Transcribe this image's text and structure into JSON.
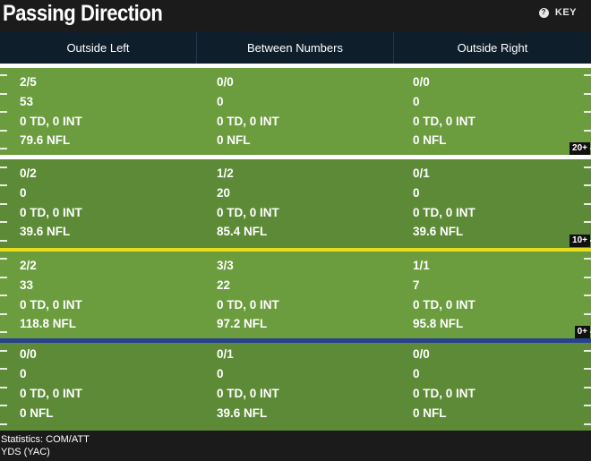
{
  "header": {
    "title": "Passing Direction",
    "key_label": "KEY",
    "key_icon": "question-icon"
  },
  "columns": [
    "Outside Left",
    "Between Numbers",
    "Outside Right"
  ],
  "zones": [
    {
      "label": "20+",
      "cells": [
        {
          "com_att": "2/5",
          "yds": "53",
          "td_int": "0 TD, 0 INT",
          "nfl": "79.6 NFL"
        },
        {
          "com_att": "0/0",
          "yds": "0",
          "td_int": "0 TD, 0 INT",
          "nfl": "0 NFL"
        },
        {
          "com_att": "0/0",
          "yds": "0",
          "td_int": "0 TD, 0 INT",
          "nfl": "0 NFL"
        }
      ]
    },
    {
      "label": "10+",
      "cells": [
        {
          "com_att": "0/2",
          "yds": "0",
          "td_int": "0 TD, 0 INT",
          "nfl": "39.6 NFL"
        },
        {
          "com_att": "1/2",
          "yds": "20",
          "td_int": "0 TD, 0 INT",
          "nfl": "85.4 NFL"
        },
        {
          "com_att": "0/1",
          "yds": "0",
          "td_int": "0 TD, 0 INT",
          "nfl": "39.6 NFL"
        }
      ]
    },
    {
      "label": "0+",
      "cells": [
        {
          "com_att": "2/2",
          "yds": "33",
          "td_int": "0 TD, 0 INT",
          "nfl": "118.8 NFL"
        },
        {
          "com_att": "3/3",
          "yds": "22",
          "td_int": "0 TD, 0 INT",
          "nfl": "97.2 NFL"
        },
        {
          "com_att": "1/1",
          "yds": "7",
          "td_int": "0 TD, 0 INT",
          "nfl": "95.8 NFL"
        }
      ]
    },
    {
      "label": "",
      "cells": [
        {
          "com_att": "0/0",
          "yds": "0",
          "td_int": "0 TD, 0 INT",
          "nfl": "0 NFL"
        },
        {
          "com_att": "0/1",
          "yds": "0",
          "td_int": "0 TD, 0 INT",
          "nfl": "39.6 NFL"
        },
        {
          "com_att": "0/0",
          "yds": "0",
          "td_int": "0 TD, 0 INT",
          "nfl": "0 NFL"
        }
      ]
    }
  ],
  "footer": {
    "line1": "Statistics: COM/ATT",
    "line2": "YDS (YAC)"
  },
  "colors": {
    "line_of_scrimmage": "#27418f",
    "first_down": "#e7dd1d",
    "yard_line": "#ffffff",
    "turf_dark": "#5d8a36",
    "turf_light": "#6b9c3e"
  }
}
